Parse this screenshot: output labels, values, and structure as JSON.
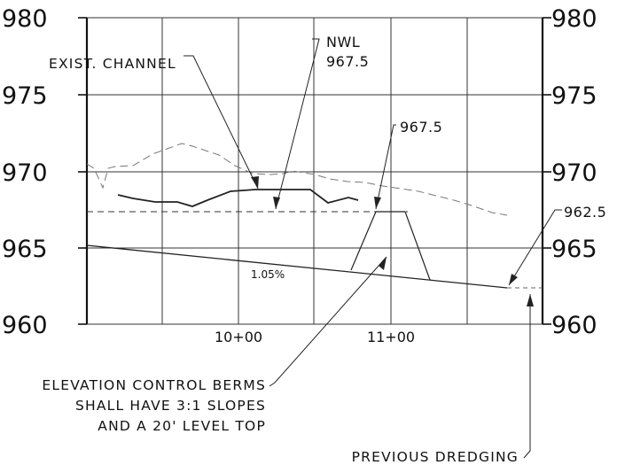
{
  "axes": {
    "y_ticks_left": [
      "980",
      "975",
      "970",
      "965",
      "960"
    ],
    "y_ticks_right": [
      "980",
      "975",
      "970",
      "965",
      "960"
    ],
    "x_ticks": [
      "10+00",
      "11+00"
    ]
  },
  "annotations": {
    "exist_channel": "EXIST. CHANNEL",
    "nwl_line1": "NWL",
    "nwl_line2": "967.5",
    "berm_elev": "967.5",
    "prev_elev": "962.5",
    "slope": "1.05%",
    "berm_note_line1": "ELEVATION CONTROL BERMS",
    "berm_note_line2": "SHALL HAVE 3:1 SLOPES",
    "berm_note_line3": "AND A 20' LEVEL TOP",
    "previous_dredging": "PREVIOUS DREDGING"
  },
  "colors": {
    "ink": "#111111",
    "grid": "#333333",
    "dashed_ground": "#777777"
  }
}
